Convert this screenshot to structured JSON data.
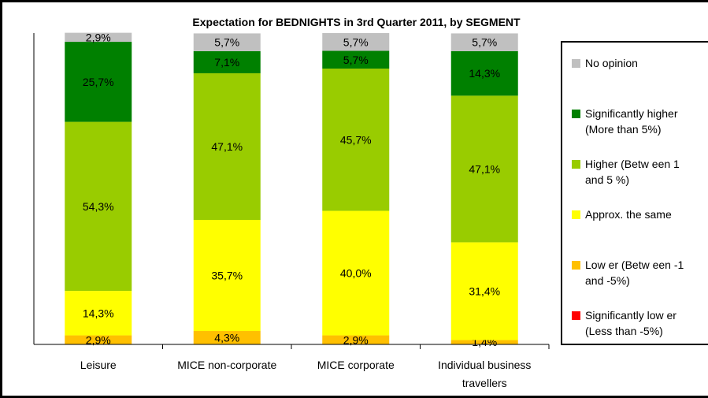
{
  "chart_data": {
    "type": "bar",
    "stacked": true,
    "title": "Expectation for BEDNIGHTS in 3rd Quarter 2011, by SEGMENT",
    "categories": [
      "Leisure",
      "MICE non-corporate",
      "MICE corporate",
      "Individual business travellers"
    ],
    "category_lines": [
      [
        "Leisure"
      ],
      [
        "MICE non-corporate"
      ],
      [
        "MICE corporate"
      ],
      [
        "Individual business",
        "travellers"
      ]
    ],
    "ylim": [
      0,
      100
    ],
    "legend_position": "right",
    "series": [
      {
        "name": "Significantly lower (Less than -5%)",
        "legend_lines": [
          "Significantly low er",
          "(Less than -5%)"
        ],
        "color": "#ff0000",
        "values": [
          0,
          0,
          0,
          0
        ],
        "labels": [
          "",
          "",
          "",
          ""
        ]
      },
      {
        "name": "Lower (Between -1 and -5%)",
        "legend_lines": [
          "Low er (Betw een -1",
          "and -5%)"
        ],
        "color": "#ffc000",
        "values": [
          2.9,
          4.3,
          2.9,
          1.4
        ],
        "labels": [
          "2,9%",
          "4,3%",
          "2,9%",
          "1,4%"
        ]
      },
      {
        "name": "Approx. the same",
        "legend_lines": [
          "Approx. the same"
        ],
        "color": "#ffff00",
        "values": [
          14.3,
          35.7,
          40.0,
          31.4
        ],
        "labels": [
          "14,3%",
          "35,7%",
          "40,0%",
          "31,4%"
        ]
      },
      {
        "name": "Higher (Between 1 and 5 %)",
        "legend_lines": [
          "Higher (Betw een 1",
          "and 5 %)"
        ],
        "color": "#99cc00",
        "values": [
          54.3,
          47.1,
          45.7,
          47.1
        ],
        "labels": [
          "54,3%",
          "47,1%",
          "45,7%",
          "47,1%"
        ]
      },
      {
        "name": "Significantly higher (More than 5%)",
        "legend_lines": [
          "Significantly higher",
          "(More than 5%)"
        ],
        "color": "#008000",
        "values": [
          25.7,
          7.1,
          5.7,
          14.3
        ],
        "labels": [
          "25,7%",
          "7,1%",
          "5,7%",
          "14,3%"
        ]
      },
      {
        "name": "No opinion",
        "legend_lines": [
          "No opinion"
        ],
        "color": "#c0c0c0",
        "values": [
          2.9,
          5.7,
          5.7,
          5.7
        ],
        "labels": [
          "2,9%",
          "5,7%",
          "5,7%",
          "5,7%"
        ]
      }
    ]
  }
}
